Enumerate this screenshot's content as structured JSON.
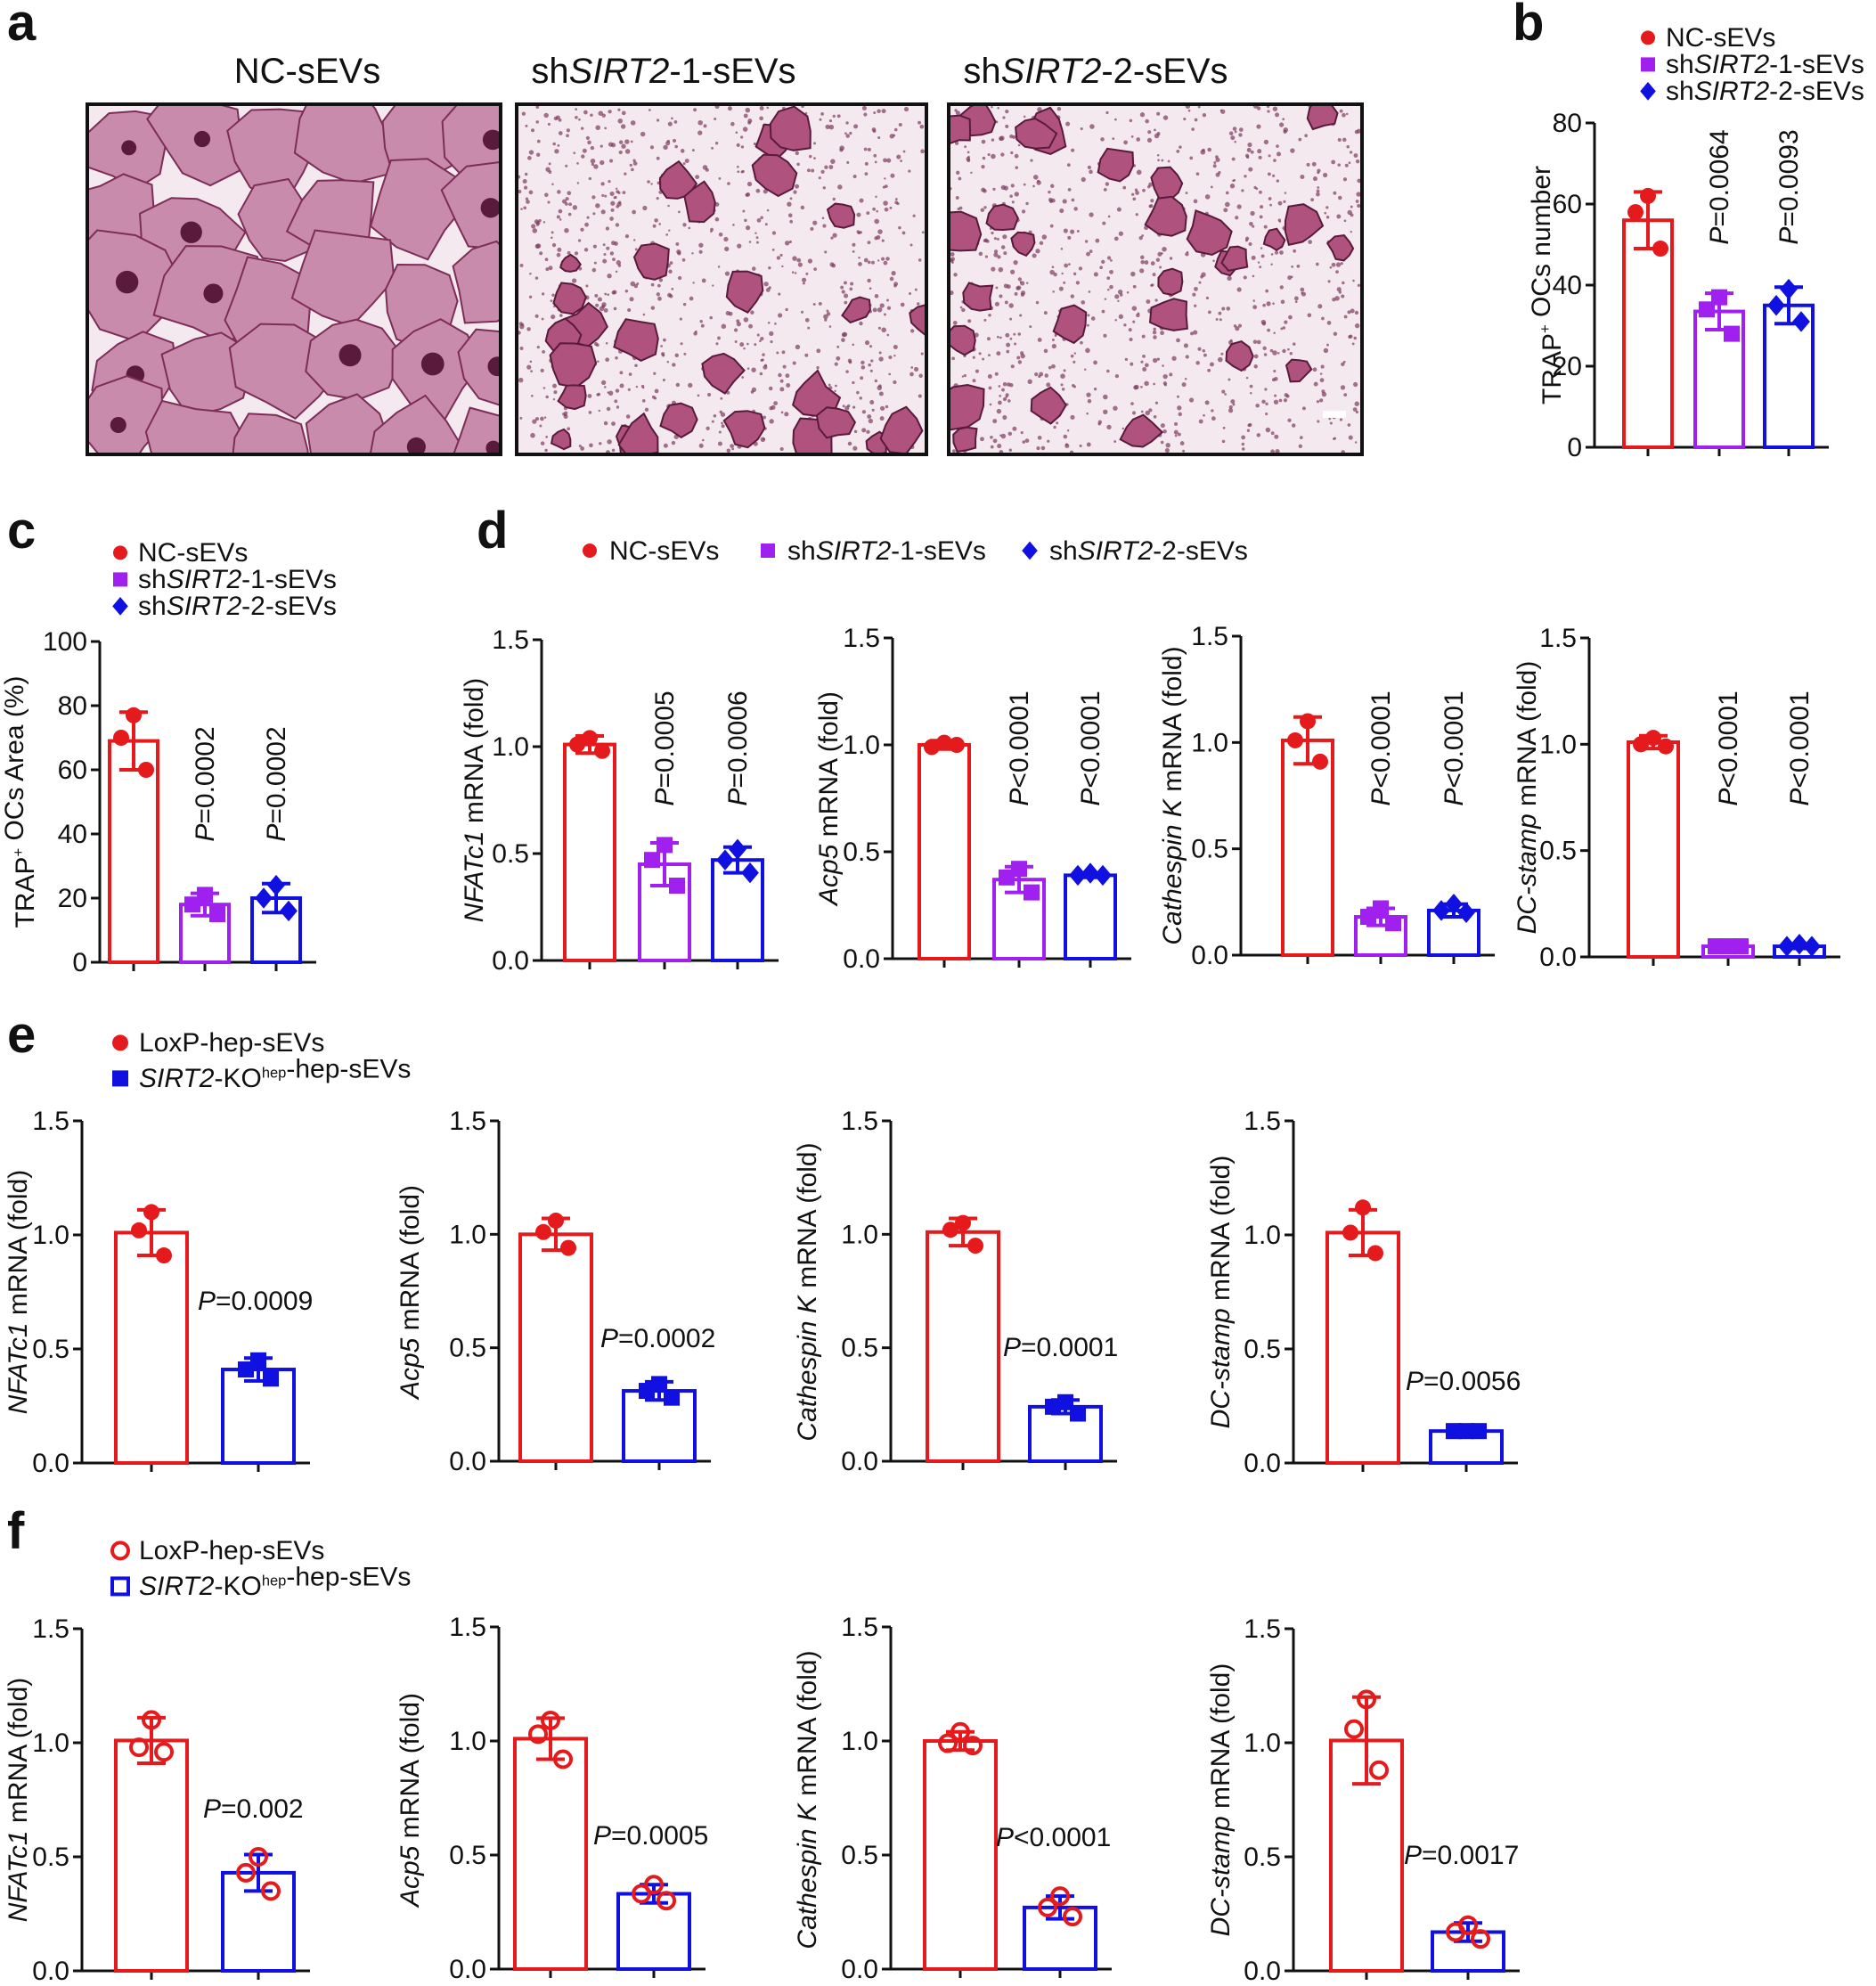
{
  "colors": {
    "nc": "#e41a1c",
    "sh1": "#a020f0",
    "sh2": "#1010e0",
    "ko": "#1010e0",
    "axis": "#111111",
    "stain_bg": "#f3e9ee",
    "stain_cell": "#b0527e",
    "stain_dark": "#5a1a3c"
  },
  "panels": {
    "a": "a",
    "b": "b",
    "c": "c",
    "d": "d",
    "e": "e",
    "f": "f"
  },
  "micrographs": [
    {
      "title_prefix": "NC-sEVs",
      "title_italic": "",
      "title_suffix": "",
      "style": "large"
    },
    {
      "title_prefix": "sh",
      "title_italic": "SIRT2",
      "title_suffix": "-1-sEVs",
      "style": "small"
    },
    {
      "title_prefix": "sh",
      "title_italic": "SIRT2",
      "title_suffix": "-2-sEVs",
      "style": "small"
    }
  ],
  "legend_3group": [
    {
      "prefix": "NC-sEVs",
      "italic": "",
      "suffix": "",
      "marker": "circle",
      "color_key": "nc"
    },
    {
      "prefix": "sh",
      "italic": "SIRT2",
      "suffix": "-1-sEVs",
      "marker": "square",
      "color_key": "sh1"
    },
    {
      "prefix": "sh",
      "italic": "SIRT2",
      "suffix": "-2-sEVs",
      "marker": "diamond",
      "color_key": "sh2"
    }
  ],
  "legend_e": [
    {
      "prefix": "LoxP-hep-sEVs",
      "italic": "",
      "sup": "",
      "suffix": "",
      "marker": "circle",
      "color_key": "nc",
      "open": false
    },
    {
      "prefix": "",
      "italic": "SIRT2",
      "sup": "hep",
      "suffix": "-KO|-hep-sEVs",
      "marker": "square",
      "color_key": "ko",
      "open": false
    }
  ],
  "legend_f": [
    {
      "prefix": "LoxP-hep-sEVs",
      "italic": "",
      "sup": "",
      "suffix": "",
      "marker": "circle",
      "color_key": "nc",
      "open": true
    },
    {
      "prefix": "",
      "italic": "SIRT2",
      "sup": "hep",
      "suffix": "-KO|-hep-sEVs",
      "marker": "square",
      "color_key": "ko",
      "open": true
    }
  ],
  "chart_data": [
    {
      "id": "b",
      "type": "bar",
      "title": "",
      "ylabel": {
        "pre": "TRAP",
        "sup": "+",
        "italic": "",
        "post": " OCs number"
      },
      "ylim": [
        0,
        80
      ],
      "yticks": [
        0,
        20,
        40,
        60,
        80
      ],
      "yticklabels": [
        "0",
        "20",
        "40",
        "60",
        "80"
      ],
      "series": [
        {
          "name": "NC-sEVs",
          "mean": 56,
          "sd": 7,
          "points": [
            62,
            58,
            49
          ]
        },
        {
          "name": "shSIRT2-1-sEVs",
          "mean": 33.5,
          "sd": 4.5,
          "points": [
            37,
            34,
            28
          ]
        },
        {
          "name": "shSIRT2-2-sEVs",
          "mean": 35,
          "sd": 4.5,
          "points": [
            39,
            35,
            31
          ]
        }
      ],
      "pvalues": [
        "",
        "=0.0064",
        "=0.0093"
      ],
      "pstyle": "vertical"
    },
    {
      "id": "c",
      "type": "bar",
      "title": "",
      "ylabel": {
        "pre": "TRAP",
        "sup": "+",
        "italic": "",
        "post": " OCs Area (%)"
      },
      "ylim": [
        0,
        100
      ],
      "yticks": [
        0,
        20,
        40,
        60,
        80,
        100
      ],
      "yticklabels": [
        "0",
        "20",
        "40",
        "60",
        "80",
        "100"
      ],
      "series": [
        {
          "name": "NC-sEVs",
          "mean": 69,
          "sd": 9,
          "points": [
            77,
            70,
            60
          ]
        },
        {
          "name": "shSIRT2-1-sEVs",
          "mean": 18,
          "sd": 3.5,
          "points": [
            21,
            18,
            15
          ]
        },
        {
          "name": "shSIRT2-2-sEVs",
          "mean": 20,
          "sd": 4.5,
          "points": [
            24,
            20,
            16
          ]
        }
      ],
      "pvalues": [
        "",
        "=0.0002",
        "=0.0002"
      ],
      "pstyle": "vertical"
    },
    {
      "id": "d1",
      "type": "bar",
      "ylabel": {
        "pre": "",
        "sup": "",
        "italic": "NFATc1",
        "post": " mRNA (fold)"
      },
      "ylim": [
        0,
        1.5
      ],
      "yticks": [
        0,
        0.5,
        1.0,
        1.5
      ],
      "yticklabels": [
        "0.0",
        "0.5",
        "1.0",
        "1.5"
      ],
      "series": [
        {
          "name": "NC-sEVs",
          "mean": 1.01,
          "sd": 0.04,
          "points": [
            1.04,
            1.01,
            0.98
          ]
        },
        {
          "name": "shSIRT2-1-sEVs",
          "mean": 0.45,
          "sd": 0.1,
          "points": [
            0.54,
            0.47,
            0.35
          ]
        },
        {
          "name": "shSIRT2-2-sEVs",
          "mean": 0.47,
          "sd": 0.06,
          "points": [
            0.52,
            0.47,
            0.41
          ]
        }
      ],
      "pvalues": [
        "",
        "=0.0005",
        "=0.0006"
      ],
      "pstyle": "vertical"
    },
    {
      "id": "d2",
      "type": "bar",
      "ylabel": {
        "pre": "",
        "sup": "",
        "italic": "Acp5",
        "post": " mRNA (fold)"
      },
      "ylim": [
        0,
        1.5
      ],
      "yticks": [
        0,
        0.5,
        1.0,
        1.5
      ],
      "yticklabels": [
        "0.0",
        "0.5",
        "1.0",
        "1.5"
      ],
      "series": [
        {
          "name": "NC-sEVs",
          "mean": 1.0,
          "sd": 0.02,
          "points": [
            1.01,
            0.99,
            1.0
          ]
        },
        {
          "name": "shSIRT2-1-sEVs",
          "mean": 0.37,
          "sd": 0.06,
          "points": [
            0.42,
            0.38,
            0.31
          ]
        },
        {
          "name": "shSIRT2-2-sEVs",
          "mean": 0.39,
          "sd": 0.01,
          "points": [
            0.4,
            0.39,
            0.39
          ]
        }
      ],
      "pvalues": [
        "",
        "<0.0001",
        "<0.0001"
      ],
      "pstyle": "vertical"
    },
    {
      "id": "d3",
      "type": "bar",
      "ylabel": {
        "pre": "",
        "sup": "",
        "italic": "Cathespin K",
        "post": " mRNA (fold)"
      },
      "ylim": [
        0,
        1.5
      ],
      "yticks": [
        0,
        0.5,
        1.0,
        1.5
      ],
      "yticklabels": [
        "0.0",
        "0.5",
        "1.0",
        "1.5"
      ],
      "series": [
        {
          "name": "NC-sEVs",
          "mean": 1.01,
          "sd": 0.11,
          "points": [
            1.1,
            1.01,
            0.91
          ]
        },
        {
          "name": "shSIRT2-1-sEVs",
          "mean": 0.18,
          "sd": 0.04,
          "points": [
            0.22,
            0.18,
            0.15
          ]
        },
        {
          "name": "shSIRT2-2-sEVs",
          "mean": 0.21,
          "sd": 0.03,
          "points": [
            0.24,
            0.21,
            0.2
          ]
        }
      ],
      "pvalues": [
        "",
        "<0.0001",
        "<0.0001"
      ],
      "pstyle": "vertical"
    },
    {
      "id": "d4",
      "type": "bar",
      "ylabel": {
        "pre": "",
        "sup": "",
        "italic": "DC-stamp",
        "post": " mRNA (fold)"
      },
      "ylim": [
        0,
        1.5
      ],
      "yticks": [
        0,
        0.5,
        1.0,
        1.5
      ],
      "yticklabels": [
        "0.0",
        "0.5",
        "1.0",
        "1.5"
      ],
      "series": [
        {
          "name": "NC-sEVs",
          "mean": 1.01,
          "sd": 0.03,
          "points": [
            1.03,
            1.0,
            0.99
          ]
        },
        {
          "name": "shSIRT2-1-sEVs",
          "mean": 0.05,
          "sd": 0.01,
          "points": [
            0.05,
            0.05,
            0.05
          ]
        },
        {
          "name": "shSIRT2-2-sEVs",
          "mean": 0.05,
          "sd": 0.01,
          "points": [
            0.06,
            0.05,
            0.05
          ]
        }
      ],
      "pvalues": [
        "",
        "<0.0001",
        "<0.0001"
      ],
      "pstyle": "vertical"
    },
    {
      "id": "e1",
      "type": "bar",
      "ylabel": {
        "pre": "",
        "sup": "",
        "italic": "NFATc1",
        "post": " mRNA (fold)"
      },
      "ylim": [
        0,
        1.5
      ],
      "yticks": [
        0,
        0.5,
        1.0,
        1.5
      ],
      "yticklabels": [
        "0.0",
        "0.5",
        "1.0",
        "1.5"
      ],
      "series": [
        {
          "name": "LoxP-hep-sEVs",
          "mean": 1.01,
          "sd": 0.1,
          "points": [
            1.1,
            1.02,
            0.91
          ]
        },
        {
          "name": "SIRT2-KOhep-hep-sEVs",
          "mean": 0.41,
          "sd": 0.05,
          "points": [
            0.45,
            0.41,
            0.37
          ]
        }
      ],
      "pvalues": [
        "",
        "=0.0009"
      ],
      "pstyle": "horizontal"
    },
    {
      "id": "e2",
      "type": "bar",
      "ylabel": {
        "pre": "",
        "sup": "",
        "italic": "Acp5",
        "post": " mRNA (fold)"
      },
      "ylim": [
        0,
        1.5
      ],
      "yticks": [
        0,
        0.5,
        1.0,
        1.5
      ],
      "yticklabels": [
        "0.0",
        "0.5",
        "1.0",
        "1.5"
      ],
      "series": [
        {
          "name": "LoxP-hep-sEVs",
          "mean": 1.0,
          "sd": 0.07,
          "points": [
            1.06,
            1.01,
            0.94
          ]
        },
        {
          "name": "SIRT2-KOhep-hep-sEVs",
          "mean": 0.31,
          "sd": 0.04,
          "points": [
            0.34,
            0.31,
            0.28
          ]
        }
      ],
      "pvalues": [
        "",
        "=0.0002"
      ],
      "pstyle": "horizontal"
    },
    {
      "id": "e3",
      "type": "bar",
      "ylabel": {
        "pre": "",
        "sup": "",
        "italic": "Cathespin K",
        "post": " mRNA (fold)"
      },
      "ylim": [
        0,
        1.5
      ],
      "yticks": [
        0,
        0.5,
        1.0,
        1.5
      ],
      "yticklabels": [
        "0.0",
        "0.5",
        "1.0",
        "1.5"
      ],
      "series": [
        {
          "name": "LoxP-hep-sEVs",
          "mean": 1.01,
          "sd": 0.06,
          "points": [
            1.05,
            1.02,
            0.95
          ]
        },
        {
          "name": "SIRT2-KOhep-hep-sEVs",
          "mean": 0.24,
          "sd": 0.03,
          "points": [
            0.26,
            0.24,
            0.21
          ]
        }
      ],
      "pvalues": [
        "",
        "=0.0001"
      ],
      "pstyle": "horizontal"
    },
    {
      "id": "e4",
      "type": "bar",
      "ylabel": {
        "pre": "",
        "sup": "",
        "italic": "DC-stamp",
        "post": " mRNA (fold)"
      },
      "ylim": [
        0,
        1.5
      ],
      "yticks": [
        0,
        0.5,
        1.0,
        1.5
      ],
      "yticklabels": [
        "0.0",
        "0.5",
        "1.0",
        "1.5"
      ],
      "series": [
        {
          "name": "LoxP-hep-sEVs",
          "mean": 1.01,
          "sd": 0.1,
          "points": [
            1.12,
            1.01,
            0.92
          ]
        },
        {
          "name": "SIRT2-KOhep-hep-sEVs",
          "mean": 0.14,
          "sd": 0.01,
          "points": [
            0.14,
            0.14,
            0.14
          ]
        }
      ],
      "pvalues": [
        "",
        "=0.0056"
      ],
      "pstyle": "horizontal"
    },
    {
      "id": "f1",
      "type": "bar",
      "ylabel": {
        "pre": "",
        "sup": "",
        "italic": "NFATc1",
        "post": " mRNA (fold)"
      },
      "ylim": [
        0,
        1.5
      ],
      "yticks": [
        0,
        0.5,
        1.0,
        1.5
      ],
      "yticklabels": [
        "0.0",
        "0.5",
        "1.0",
        "1.5"
      ],
      "series": [
        {
          "name": "LoxP-hep-sEVs",
          "mean": 1.01,
          "sd": 0.1,
          "points": [
            1.1,
            0.98,
            0.96
          ]
        },
        {
          "name": "SIRT2-KOhep-hep-sEVs",
          "mean": 0.43,
          "sd": 0.08,
          "points": [
            0.5,
            0.43,
            0.35
          ]
        }
      ],
      "pvalues": [
        "",
        "=0.002"
      ],
      "pstyle": "horizontal"
    },
    {
      "id": "f2",
      "type": "bar",
      "ylabel": {
        "pre": "",
        "sup": "",
        "italic": "Acp5",
        "post": " mRNA (fold)"
      },
      "ylim": [
        0,
        1.5
      ],
      "yticks": [
        0,
        0.5,
        1.0,
        1.5
      ],
      "yticklabels": [
        "0.0",
        "0.5",
        "1.0",
        "1.5"
      ],
      "series": [
        {
          "name": "LoxP-hep-sEVs",
          "mean": 1.01,
          "sd": 0.09,
          "points": [
            1.09,
            1.03,
            0.92
          ]
        },
        {
          "name": "SIRT2-KOhep-hep-sEVs",
          "mean": 0.33,
          "sd": 0.04,
          "points": [
            0.37,
            0.33,
            0.3
          ]
        }
      ],
      "pvalues": [
        "",
        "=0.0005"
      ],
      "pstyle": "horizontal"
    },
    {
      "id": "f3",
      "type": "bar",
      "ylabel": {
        "pre": "",
        "sup": "",
        "italic": "Cathespin K",
        "post": " mRNA (fold)"
      },
      "ylim": [
        0,
        1.5
      ],
      "yticks": [
        0,
        0.5,
        1.0,
        1.5
      ],
      "yticklabels": [
        "0.0",
        "0.5",
        "1.0",
        "1.5"
      ],
      "series": [
        {
          "name": "LoxP-hep-sEVs",
          "mean": 1.0,
          "sd": 0.04,
          "points": [
            1.04,
            0.99,
            0.98
          ]
        },
        {
          "name": "SIRT2-KOhep-hep-sEVs",
          "mean": 0.27,
          "sd": 0.05,
          "points": [
            0.32,
            0.27,
            0.23
          ]
        }
      ],
      "pvalues": [
        "",
        "<0.0001"
      ],
      "pstyle": "horizontal"
    },
    {
      "id": "f4",
      "type": "bar",
      "ylabel": {
        "pre": "",
        "sup": "",
        "italic": "DC-stamp",
        "post": " mRNA (fold)"
      },
      "ylim": [
        0,
        1.5
      ],
      "yticks": [
        0,
        0.5,
        1.0,
        1.5
      ],
      "yticklabels": [
        "0.0",
        "0.5",
        "1.0",
        "1.5"
      ],
      "series": [
        {
          "name": "LoxP-hep-sEVs",
          "mean": 1.01,
          "sd": 0.19,
          "points": [
            1.19,
            1.06,
            0.88
          ]
        },
        {
          "name": "SIRT2-KOhep-hep-sEVs",
          "mean": 0.17,
          "sd": 0.04,
          "points": [
            0.2,
            0.17,
            0.14
          ]
        }
      ],
      "pvalues": [
        "",
        "=0.0017"
      ],
      "pstyle": "horizontal"
    }
  ]
}
